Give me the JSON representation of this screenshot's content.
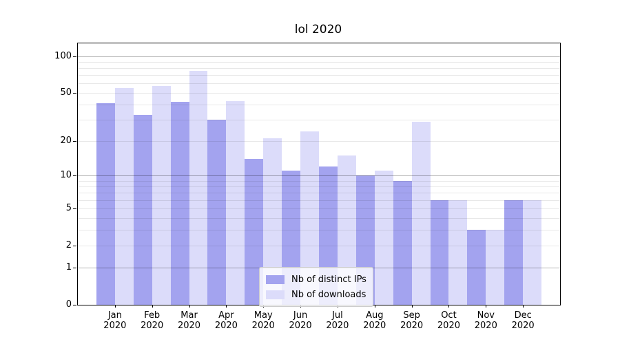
{
  "chart_data": {
    "type": "bar",
    "title": "lol 2020",
    "categories": [
      "Jan",
      "Feb",
      "Mar",
      "Apr",
      "May",
      "Jun",
      "Jul",
      "Aug",
      "Sep",
      "Oct",
      "Nov",
      "Dec"
    ],
    "category_year": "2020",
    "series": [
      {
        "name": "Nb of distinct IPs",
        "color": "#a3a3ef",
        "values": [
          41,
          33,
          42,
          30,
          14,
          11,
          12,
          10,
          9,
          6,
          3,
          6
        ]
      },
      {
        "name": "Nb of downloads",
        "color": "#dcdcfa",
        "values": [
          55,
          57,
          76,
          43,
          21,
          24,
          15,
          11,
          29,
          6,
          3,
          6
        ]
      }
    ],
    "y_axis": {
      "scale": "symlog",
      "tick_labels": [
        0,
        1,
        2,
        5,
        10,
        20,
        50,
        100
      ],
      "major_gridlines": [
        1,
        10,
        100
      ],
      "minor_gridlines": [
        2,
        3,
        4,
        5,
        6,
        7,
        8,
        9,
        20,
        30,
        40,
        50,
        60,
        70,
        80,
        90
      ],
      "top_value": 127
    },
    "legend_position": "lower center",
    "grid": true
  }
}
